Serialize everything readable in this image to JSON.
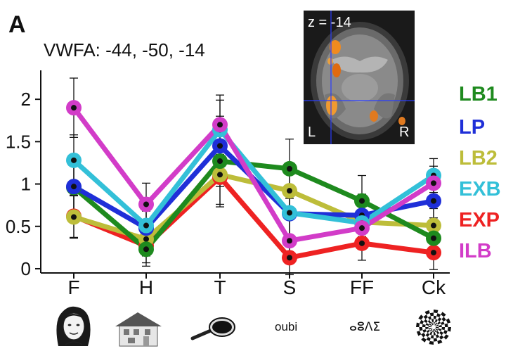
{
  "panel_label": "A",
  "roi_title": "VWFA: -44, -50, -14",
  "inset": {
    "slice_label": "z = -14",
    "left_label": "L",
    "right_label": "R"
  },
  "colors": {
    "LB1": "#1e8a1e",
    "LP": "#1f2fd8",
    "LB2": "#bdbd3a",
    "EXB": "#33c0d8",
    "EXP": "#ee2222",
    "ILB": "#d23cc8"
  },
  "stimuli": {
    "face": "face-icon",
    "house": "house-icon",
    "tool": "frying-pan-icon",
    "string_text": "oubi",
    "false_font_text": "ⴰⵓⴷⵉ",
    "checkerboard": "checkerboard-icon"
  },
  "chart_data": {
    "type": "line",
    "categories": [
      "F",
      "H",
      "T",
      "S",
      "FF",
      "Ck"
    ],
    "yticks": [
      "0",
      "0.5",
      "1",
      "1.5",
      "2"
    ],
    "ylim": [
      -0.05,
      2.3
    ],
    "series": [
      {
        "name": "LB1",
        "values": [
          0.96,
          0.23,
          1.27,
          1.18,
          0.8,
          0.36
        ],
        "err": [
          0.35,
          0.2,
          0.3,
          0.35,
          0.3,
          0.2
        ]
      },
      {
        "name": "LP",
        "values": [
          0.97,
          0.48,
          1.45,
          0.65,
          0.63,
          0.8
        ],
        "err": [
          0.3,
          0.2,
          0.35,
          0.3,
          0.25,
          0.2
        ]
      },
      {
        "name": "LB2",
        "values": [
          0.61,
          0.35,
          1.11,
          0.92,
          0.55,
          0.51
        ],
        "err": [
          0.25,
          0.2,
          0.35,
          0.3,
          0.2,
          0.2
        ]
      },
      {
        "name": "EXB",
        "values": [
          1.28,
          0.51,
          1.64,
          0.66,
          0.54,
          1.1
        ],
        "err": [
          0.3,
          0.2,
          0.35,
          0.3,
          0.2,
          0.2
        ]
      },
      {
        "name": "EXP",
        "values": [
          0.62,
          0.27,
          1.08,
          0.13,
          0.3,
          0.19
        ],
        "err": [
          0.25,
          0.2,
          0.35,
          0.2,
          0.2,
          0.2
        ]
      },
      {
        "name": "ILB",
        "values": [
          1.9,
          0.76,
          1.7,
          0.33,
          0.48,
          1.01
        ],
        "err": [
          0.35,
          0.25,
          0.35,
          0.25,
          0.2,
          0.2
        ]
      }
    ],
    "legend": "right"
  }
}
